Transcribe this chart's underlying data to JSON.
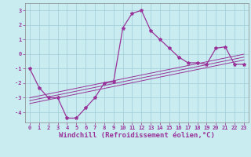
{
  "xlabel": "Windchill (Refroidissement éolien,°C)",
  "background_color": "#c8ecf0",
  "grid_color": "#a0ccd8",
  "line_color": "#993399",
  "x_data": [
    0,
    1,
    2,
    3,
    4,
    5,
    6,
    7,
    8,
    9,
    10,
    11,
    12,
    13,
    14,
    15,
    16,
    17,
    18,
    19,
    20,
    21,
    22,
    23
  ],
  "y_main": [
    -1.0,
    -2.3,
    -3.0,
    -3.0,
    -4.4,
    -4.4,
    -3.7,
    -3.0,
    -2.0,
    -1.9,
    1.8,
    2.8,
    3.0,
    1.6,
    1.0,
    0.4,
    -0.2,
    -0.6,
    -0.6,
    -0.7,
    0.4,
    0.5,
    -0.7,
    -0.7
  ],
  "y_line1": [
    -3.0,
    -2.87,
    -2.74,
    -2.61,
    -2.48,
    -2.35,
    -2.22,
    -2.09,
    -1.96,
    -1.83,
    -1.7,
    -1.57,
    -1.44,
    -1.31,
    -1.18,
    -1.05,
    -0.92,
    -0.79,
    -0.66,
    -0.53,
    -0.4,
    -0.27,
    -0.14,
    -0.01
  ],
  "y_line2": [
    -3.2,
    -3.07,
    -2.94,
    -2.81,
    -2.68,
    -2.55,
    -2.42,
    -2.29,
    -2.16,
    -2.03,
    -1.9,
    -1.77,
    -1.64,
    -1.51,
    -1.38,
    -1.25,
    -1.12,
    -0.99,
    -0.86,
    -0.73,
    -0.6,
    -0.47,
    -0.34,
    -0.21
  ],
  "y_line3": [
    -3.4,
    -3.27,
    -3.14,
    -3.01,
    -2.88,
    -2.75,
    -2.62,
    -2.49,
    -2.36,
    -2.23,
    -2.1,
    -1.97,
    -1.84,
    -1.71,
    -1.58,
    -1.45,
    -1.32,
    -1.19,
    -1.06,
    -0.93,
    -0.8,
    -0.67,
    -0.54,
    -0.41
  ],
  "ylim": [
    -4.7,
    3.5
  ],
  "xlim": [
    -0.5,
    23.5
  ],
  "yticks": [
    -4,
    -3,
    -2,
    -1,
    0,
    1,
    2,
    3
  ],
  "xticks": [
    0,
    1,
    2,
    3,
    4,
    5,
    6,
    7,
    8,
    9,
    10,
    11,
    12,
    13,
    14,
    15,
    16,
    17,
    18,
    19,
    20,
    21,
    22,
    23
  ],
  "tick_fontsize": 5.0,
  "xlabel_fontsize": 6.5,
  "marker_size": 3
}
